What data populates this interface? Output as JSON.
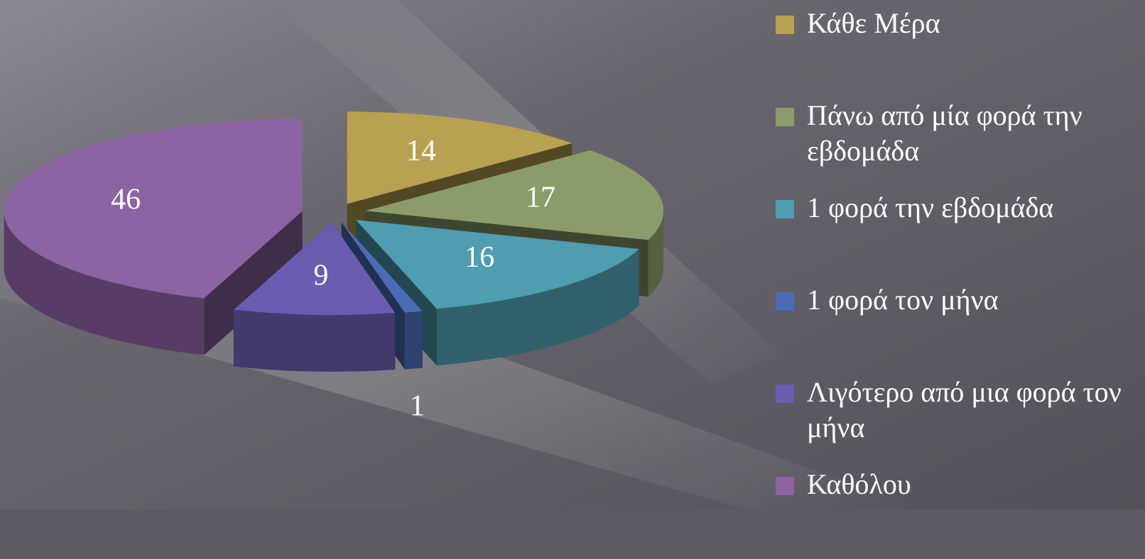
{
  "chart_data": {
    "type": "pie3d",
    "categories": [
      "Κάθε Μέρα",
      "Πάνω από μία φορά την εβδομάδα",
      "1 φορά την εβδομάδα",
      "1 φορά τον μήνα",
      "Λιγότερο από μια φορά τον μήνα",
      "Καθόλου"
    ],
    "values": [
      14,
      17,
      16,
      1,
      9,
      46
    ],
    "colors": [
      "#b8a150",
      "#8b9c6a",
      "#4f9db0",
      "#4a6cb4",
      "#6a5cb0",
      "#8c63a3"
    ],
    "legend": "right"
  }
}
